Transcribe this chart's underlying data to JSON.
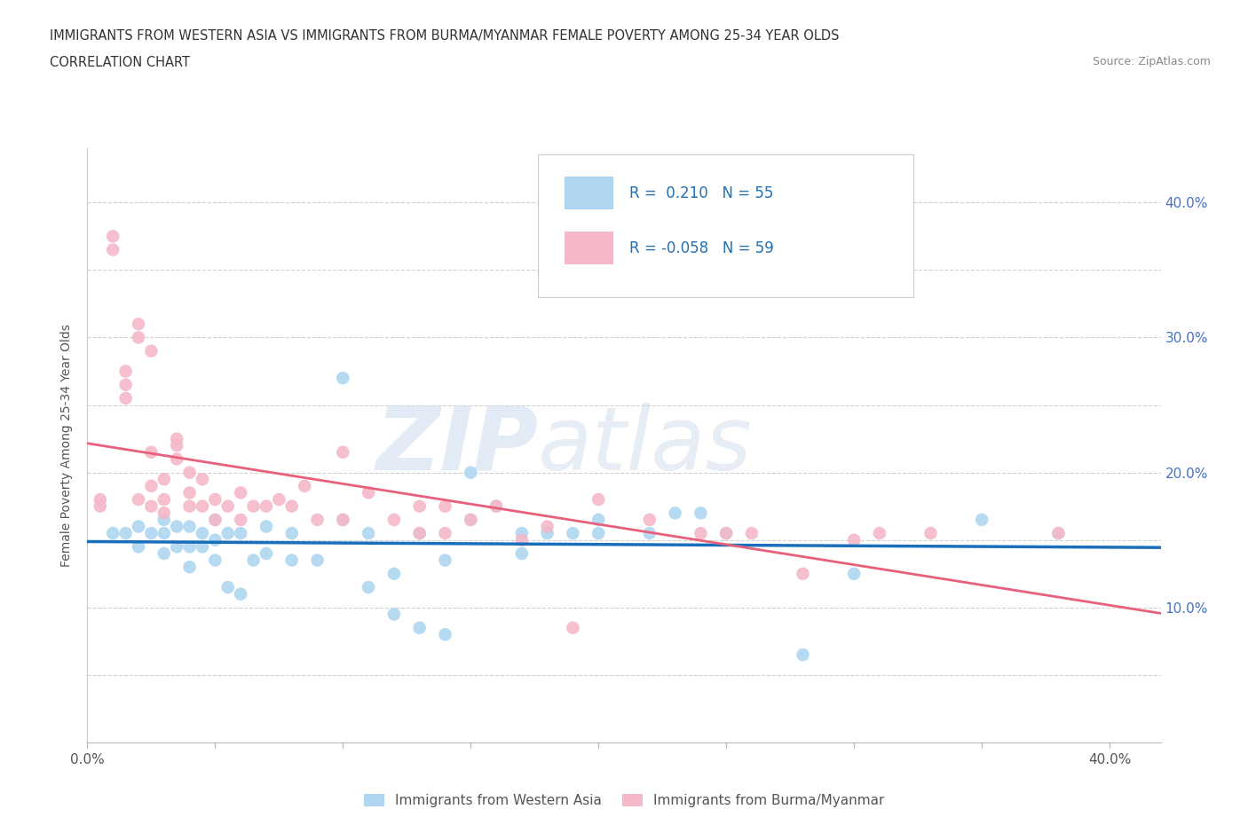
{
  "title_line1": "IMMIGRANTS FROM WESTERN ASIA VS IMMIGRANTS FROM BURMA/MYANMAR FEMALE POVERTY AMONG 25-34 YEAR OLDS",
  "title_line2": "CORRELATION CHART",
  "source": "Source: ZipAtlas.com",
  "ylabel": "Female Poverty Among 25-34 Year Olds",
  "xlim": [
    0.0,
    0.42
  ],
  "ylim": [
    0.0,
    0.44
  ],
  "xticks": [
    0.0,
    0.05,
    0.1,
    0.15,
    0.2,
    0.25,
    0.3,
    0.35,
    0.4
  ],
  "yticks": [
    0.0,
    0.05,
    0.1,
    0.15,
    0.2,
    0.25,
    0.3,
    0.35,
    0.4
  ],
  "R_western": 0.21,
  "N_western": 55,
  "R_burma": -0.058,
  "N_burma": 59,
  "color_western": "#aed6f1",
  "color_burma": "#f4b8c8",
  "line_color_western": "#1a6fbd",
  "line_color_burma": "#e8607a",
  "watermark_zip": "ZIP",
  "watermark_atlas": "atlas",
  "western_asia_x": [
    0.01,
    0.015,
    0.02,
    0.02,
    0.025,
    0.03,
    0.03,
    0.03,
    0.035,
    0.035,
    0.04,
    0.04,
    0.04,
    0.045,
    0.045,
    0.05,
    0.05,
    0.05,
    0.055,
    0.055,
    0.06,
    0.06,
    0.065,
    0.07,
    0.07,
    0.08,
    0.08,
    0.09,
    0.1,
    0.1,
    0.11,
    0.11,
    0.12,
    0.12,
    0.13,
    0.13,
    0.14,
    0.14,
    0.15,
    0.15,
    0.16,
    0.17,
    0.17,
    0.18,
    0.19,
    0.2,
    0.2,
    0.22,
    0.23,
    0.24,
    0.25,
    0.28,
    0.3,
    0.35,
    0.38
  ],
  "western_asia_y": [
    0.155,
    0.155,
    0.145,
    0.16,
    0.155,
    0.14,
    0.155,
    0.165,
    0.145,
    0.16,
    0.13,
    0.145,
    0.16,
    0.145,
    0.155,
    0.135,
    0.15,
    0.165,
    0.115,
    0.155,
    0.11,
    0.155,
    0.135,
    0.14,
    0.16,
    0.135,
    0.155,
    0.135,
    0.165,
    0.27,
    0.115,
    0.155,
    0.095,
    0.125,
    0.085,
    0.155,
    0.08,
    0.135,
    0.165,
    0.2,
    0.175,
    0.14,
    0.155,
    0.155,
    0.155,
    0.155,
    0.165,
    0.155,
    0.17,
    0.17,
    0.155,
    0.065,
    0.125,
    0.165,
    0.155
  ],
  "burma_x": [
    0.005,
    0.005,
    0.01,
    0.01,
    0.015,
    0.015,
    0.015,
    0.02,
    0.02,
    0.02,
    0.025,
    0.025,
    0.025,
    0.025,
    0.03,
    0.03,
    0.03,
    0.035,
    0.035,
    0.035,
    0.04,
    0.04,
    0.04,
    0.045,
    0.045,
    0.05,
    0.05,
    0.055,
    0.06,
    0.06,
    0.065,
    0.07,
    0.075,
    0.08,
    0.085,
    0.09,
    0.1,
    0.1,
    0.11,
    0.12,
    0.13,
    0.13,
    0.14,
    0.14,
    0.15,
    0.16,
    0.17,
    0.18,
    0.19,
    0.2,
    0.22,
    0.24,
    0.25,
    0.26,
    0.28,
    0.3,
    0.31,
    0.33,
    0.38
  ],
  "burma_y": [
    0.175,
    0.18,
    0.365,
    0.375,
    0.255,
    0.265,
    0.275,
    0.18,
    0.3,
    0.31,
    0.175,
    0.19,
    0.215,
    0.29,
    0.17,
    0.18,
    0.195,
    0.21,
    0.22,
    0.225,
    0.175,
    0.185,
    0.2,
    0.175,
    0.195,
    0.165,
    0.18,
    0.175,
    0.165,
    0.185,
    0.175,
    0.175,
    0.18,
    0.175,
    0.19,
    0.165,
    0.165,
    0.215,
    0.185,
    0.165,
    0.155,
    0.175,
    0.155,
    0.175,
    0.165,
    0.175,
    0.15,
    0.16,
    0.085,
    0.18,
    0.165,
    0.155,
    0.155,
    0.155,
    0.125,
    0.15,
    0.155,
    0.155,
    0.155
  ]
}
